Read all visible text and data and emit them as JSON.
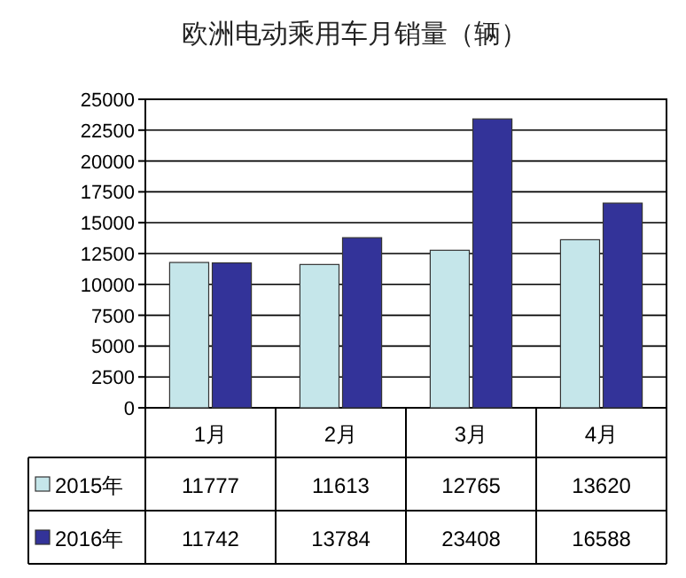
{
  "chart_data": {
    "type": "bar",
    "title": "欧洲电动乘用车月销量（辆）",
    "categories": [
      "1月",
      "2月",
      "3月",
      "4月"
    ],
    "series": [
      {
        "name": "2015年",
        "color": "#c5e6ea",
        "values": [
          11777,
          11613,
          12765,
          13620
        ]
      },
      {
        "name": "2016年",
        "color": "#333399",
        "values": [
          11742,
          13784,
          23408,
          16588
        ]
      }
    ],
    "ylim": [
      0,
      25000
    ],
    "yticks": [
      0,
      2500,
      5000,
      7500,
      10000,
      12500,
      15000,
      17500,
      20000,
      22500,
      25000
    ],
    "grid": "y",
    "data_labels": true,
    "legend": "bottom"
  }
}
